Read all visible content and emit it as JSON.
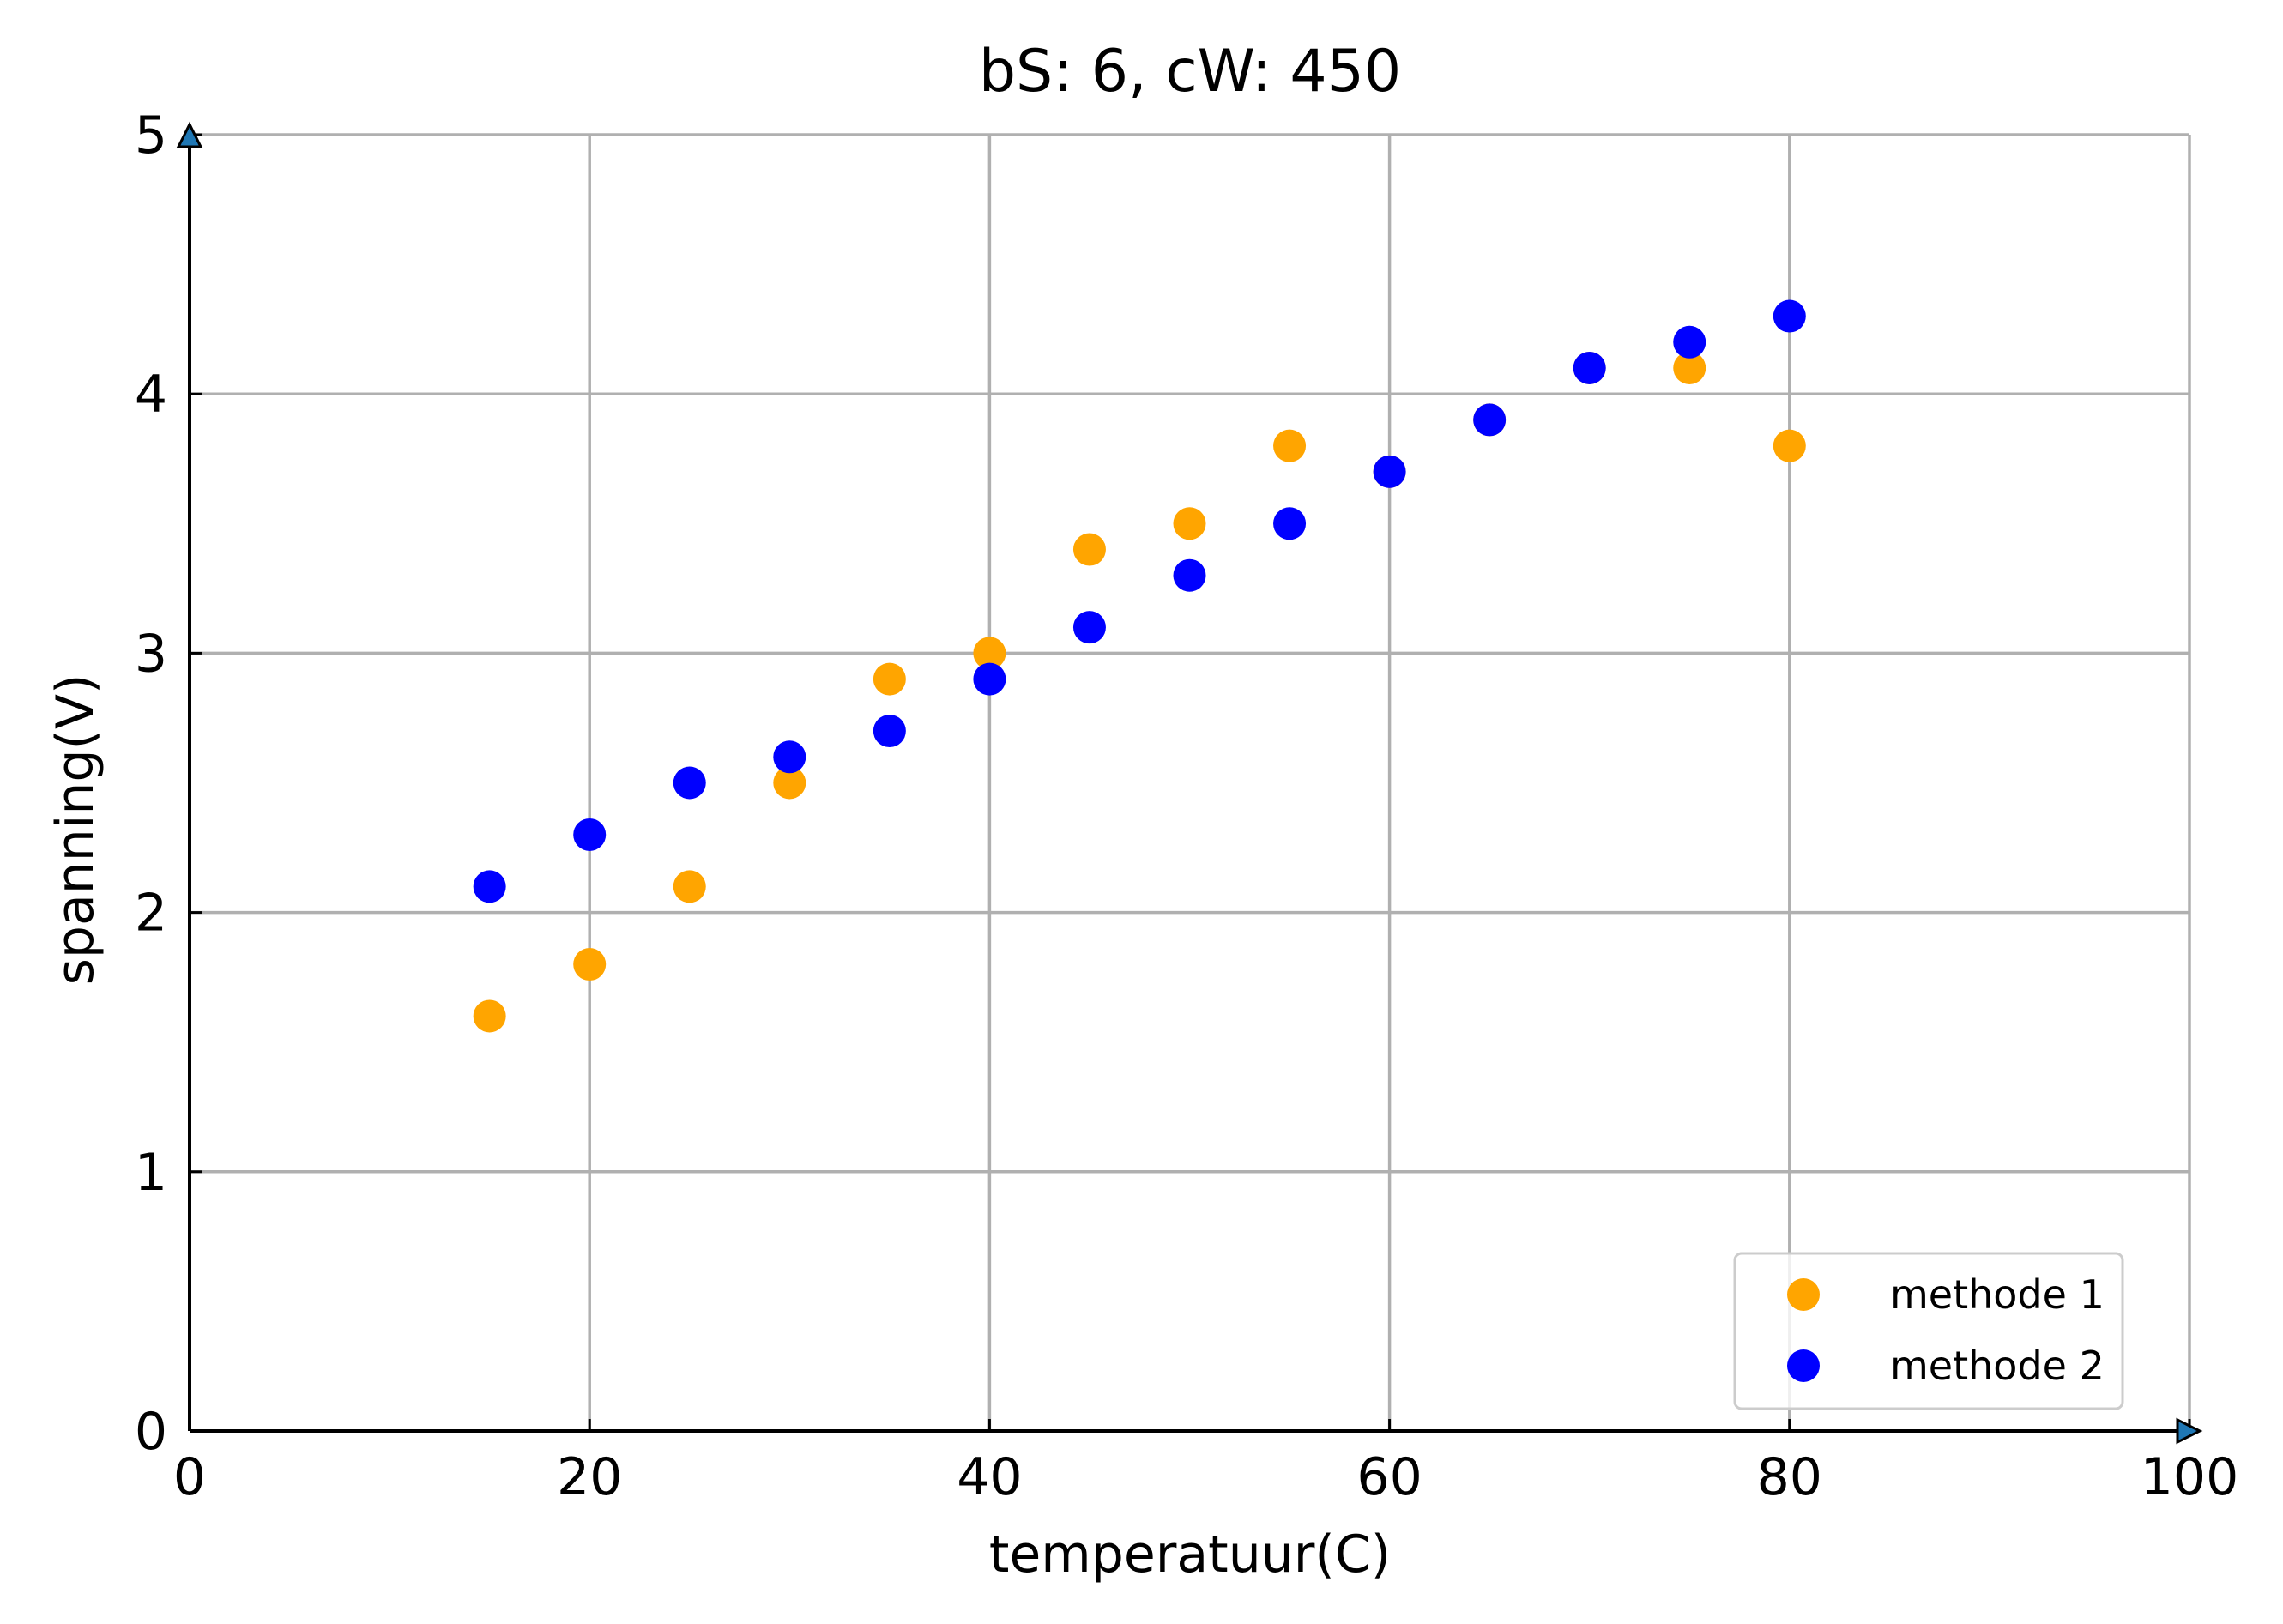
{
  "chart_data": {
    "type": "scatter",
    "title": "bS: 6, cW: 450",
    "xlabel": "temperatuur(C)",
    "ylabel": "spanning(V)",
    "xlim": [
      0,
      100
    ],
    "ylim": [
      0,
      5
    ],
    "xticks": [
      "0",
      "20",
      "40",
      "60",
      "80",
      "100"
    ],
    "yticks": [
      "0",
      "1",
      "2",
      "3",
      "4",
      "5"
    ],
    "grid": true,
    "legend_position": "lower-right",
    "series": [
      {
        "name": "methode 1",
        "color": "#FFA500",
        "x": [
          15,
          20,
          25,
          30,
          35,
          40,
          45,
          50,
          55,
          60,
          65,
          70,
          75,
          80
        ],
        "y": [
          1.6,
          1.8,
          2.1,
          2.5,
          2.9,
          3.0,
          3.4,
          3.5,
          3.8,
          3.7,
          3.9,
          4.1,
          4.1,
          3.8
        ]
      },
      {
        "name": "methode 2",
        "color": "#0000FF",
        "x": [
          15,
          20,
          25,
          30,
          35,
          40,
          45,
          50,
          55,
          60,
          65,
          70,
          75,
          80
        ],
        "y": [
          2.1,
          2.3,
          2.5,
          2.6,
          2.7,
          2.9,
          3.1,
          3.3,
          3.5,
          3.7,
          3.9,
          4.1,
          4.2,
          4.3
        ]
      }
    ]
  }
}
